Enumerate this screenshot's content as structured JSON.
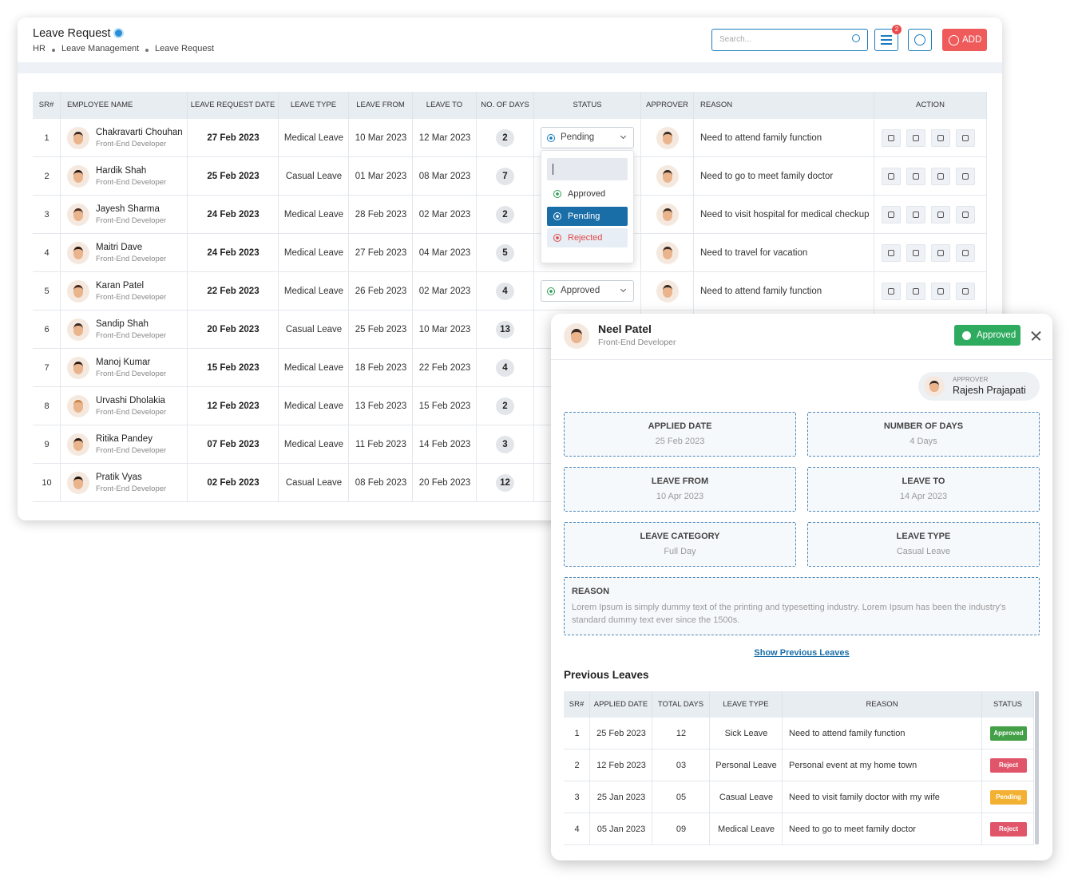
{
  "header": {
    "title": "Leave Request",
    "breadcrumb": [
      "HR",
      "Leave Management",
      "Leave Request"
    ],
    "search_placeholder": "Search...",
    "filter_badge": "2",
    "add_button": "ADD"
  },
  "table": {
    "columns": [
      "SR#",
      "EMPLOYEE NAME",
      "LEAVE REQUEST DATE",
      "LEAVE TYPE",
      "LEAVE FROM",
      "LEAVE TO",
      "NO. OF DAYS",
      "STATUS",
      "APPROVER",
      "REASON",
      "ACTION"
    ],
    "rows": [
      {
        "sr": "1",
        "name": "Chakravarti Chouhan",
        "role": "Front-End Developer",
        "date": "27 Feb 2023",
        "type": "Medical Leave",
        "from": "10 Mar 2023",
        "to": "12 Mar 2023",
        "days": "2",
        "status": "Pending",
        "status_color": "#1a7bc0",
        "reason": "Need to attend family function"
      },
      {
        "sr": "2",
        "name": "Hardik Shah",
        "role": "Front-End Developer",
        "date": "25 Feb 2023",
        "type": "Casual Leave",
        "from": "01 Mar 2023",
        "to": "08 Mar 2023",
        "days": "7",
        "reason": "Need to go to meet family doctor"
      },
      {
        "sr": "3",
        "name": "Jayesh Sharma",
        "role": "Front-End Developer",
        "date": "24 Feb 2023",
        "type": "Medical Leave",
        "from": "28 Feb 2023",
        "to": "02 Mar 2023",
        "days": "2",
        "reason": "Need to visit hospital for medical checkup"
      },
      {
        "sr": "4",
        "name": "Maitri Dave",
        "role": "Front-End Developer",
        "date": "24 Feb 2023",
        "type": "Medical Leave",
        "from": "27 Feb 2023",
        "to": "04 Mar 2023",
        "days": "5",
        "reason": "Need to travel for vacation"
      },
      {
        "sr": "5",
        "name": "Karan Patel",
        "role": "Front-End Developer",
        "date": "22 Feb 2023",
        "type": "Medical Leave",
        "from": "26 Feb 2023",
        "to": "02 Mar 2023",
        "days": "4",
        "status": "Approved",
        "status_color": "#2e9d57",
        "reason": "Need to attend family function"
      },
      {
        "sr": "6",
        "name": "Sandip Shah",
        "role": "Front-End Developer",
        "date": "20 Feb 2023",
        "type": "Casual Leave",
        "from": "25 Feb 2023",
        "to": "10 Mar 2023",
        "days": "13"
      },
      {
        "sr": "7",
        "name": "Manoj Kumar",
        "role": "Front-End Developer",
        "date": "15 Feb 2023",
        "type": "Medical Leave",
        "from": "18 Feb 2023",
        "to": "22 Feb 2023",
        "days": "4"
      },
      {
        "sr": "8",
        "name": "Urvashi Dholakia",
        "role": "Front-End Developer",
        "date": "12 Feb 2023",
        "type": "Medical Leave",
        "from": "13 Feb 2023",
        "to": "15 Feb 2023",
        "days": "2"
      },
      {
        "sr": "9",
        "name": "Ritika Pandey",
        "role": "Front-End Developer",
        "date": "07 Feb 2023",
        "type": "Medical Leave",
        "from": "11 Feb 2023",
        "to": "14 Feb 2023",
        "days": "3"
      },
      {
        "sr": "10",
        "name": "Pratik Vyas",
        "role": "Front-End Developer",
        "date": "02 Feb 2023",
        "type": "Casual Leave",
        "from": "08 Feb 2023",
        "to": "20 Feb 2023",
        "days": "12"
      }
    ]
  },
  "dropdown": {
    "options": [
      {
        "label": "Approved",
        "color": "#2e9d57"
      },
      {
        "label": "Pending",
        "color": "#ffffff"
      },
      {
        "label": "Rejected",
        "color": "#e04848"
      }
    ]
  },
  "modal": {
    "name": "Neel Patel",
    "role": "Front-End Developer",
    "status": "Approved",
    "approver_label": "APPROVER",
    "approver_name": "Rajesh Prajapati",
    "fields": [
      {
        "label": "APPLIED DATE",
        "value": "25 Feb 2023"
      },
      {
        "label": "NUMBER OF DAYS",
        "value": "4 Days"
      },
      {
        "label": "LEAVE FROM",
        "value": "10 Apr 2023"
      },
      {
        "label": "LEAVE TO",
        "value": "14 Apr 2023"
      },
      {
        "label": "LEAVE CATEGORY",
        "value": "Full Day"
      },
      {
        "label": "LEAVE TYPE",
        "value": "Casual Leave"
      }
    ],
    "reason_label": "REASON",
    "reason": "Lorem Ipsum is simply dummy text of the printing and typesetting industry. Lorem Ipsum has been the industry's standard dummy text ever since the 1500s.",
    "show_previous": "Show Previous Leaves",
    "previous_title": "Previous Leaves",
    "previous_columns": [
      "SR#",
      "APPLIED DATE",
      "TOTAL DAYS",
      "LEAVE TYPE",
      "REASON",
      "STATUS"
    ],
    "previous_rows": [
      {
        "sr": "1",
        "date": "25 Feb 2023",
        "days": "12",
        "type": "Sick Leave",
        "reason": "Need to attend family function",
        "status": "Approved",
        "color": "#43a047"
      },
      {
        "sr": "2",
        "date": "12 Feb 2023",
        "days": "03",
        "type": "Personal Leave",
        "reason": "Personal event at my home town",
        "status": "Reject",
        "color": "#e0556a"
      },
      {
        "sr": "3",
        "date": "25 Jan 2023",
        "days": "05",
        "type": "Casual Leave",
        "reason": "Need to visit family doctor with my wife",
        "status": "Pending",
        "color": "#f2b132"
      },
      {
        "sr": "4",
        "date": "05 Jan 2023",
        "days": "09",
        "type": "Medical Leave",
        "reason": "Need to go to meet family doctor",
        "status": "Reject",
        "color": "#e0556a"
      }
    ]
  }
}
